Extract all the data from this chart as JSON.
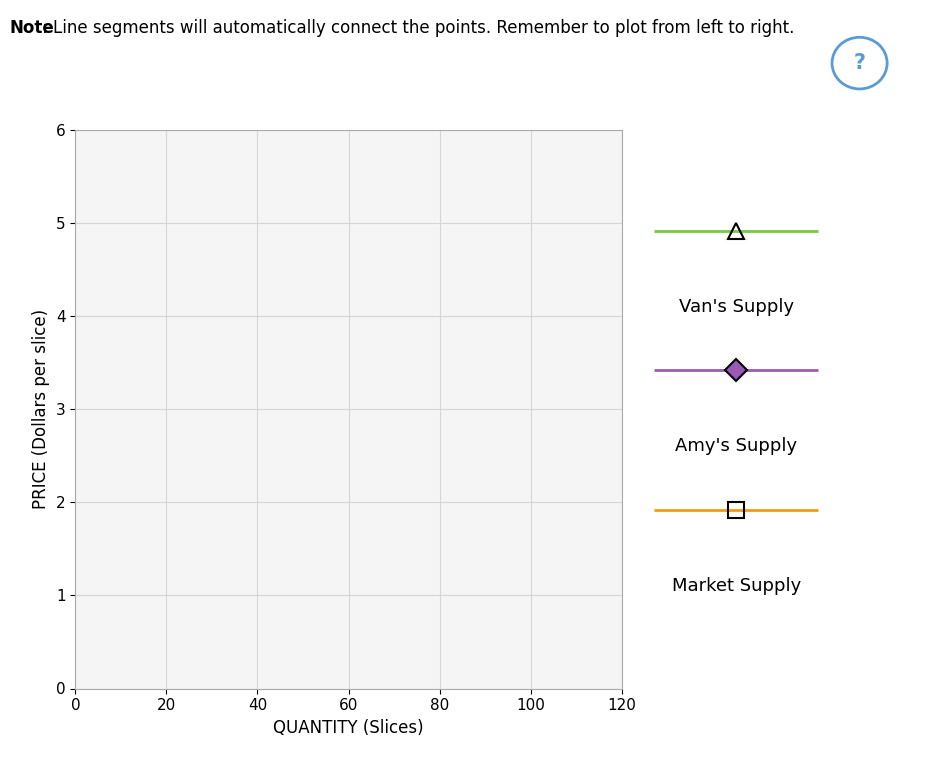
{
  "title_note_bold": "Note",
  "title_note_rest": ": Line segments will automatically connect the points. Remember to plot from left to right.",
  "xlabel": "QUANTITY (Slices)",
  "ylabel": "PRICE (Dollars per slice)",
  "xlim": [
    0,
    120
  ],
  "ylim": [
    0,
    6
  ],
  "xticks": [
    0,
    20,
    40,
    60,
    80,
    100,
    120
  ],
  "yticks": [
    0,
    1,
    2,
    3,
    4,
    5,
    6
  ],
  "grid_color": "#d5d5d5",
  "background_color": "#ffffff",
  "plot_bg_color": "#f5f5f5",
  "legend_entries": [
    {
      "label": "Van's Supply",
      "color": "#7cc642",
      "marker": "^",
      "marker_facecolor": "none",
      "marker_size": 11
    },
    {
      "label": "Amy's Supply",
      "color": "#9b59b6",
      "marker": "D",
      "marker_facecolor": "#9b59b6",
      "marker_size": 11
    },
    {
      "label": "Market Supply",
      "color": "#f39c12",
      "marker": "s",
      "marker_facecolor": "none",
      "marker_size": 11
    }
  ],
  "question_mark_color": "#5b9bd5",
  "note_fontsize": 12,
  "axis_label_fontsize": 12,
  "tick_fontsize": 11,
  "legend_fontsize": 13
}
